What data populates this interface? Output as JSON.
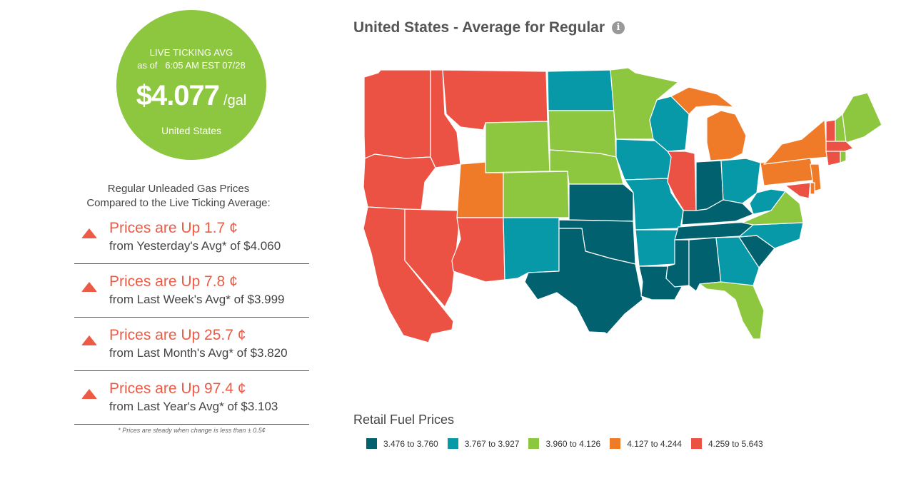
{
  "bubble": {
    "line1": "LIVE TICKING AVG",
    "line2": "as of   6:05 AM EST 07/28",
    "price": "$4.077",
    "unit": "/gal",
    "region": "United States"
  },
  "compare_heading": [
    "Regular Unleaded Gas Prices",
    "Compared to the Live Ticking Average:"
  ],
  "comparisons": [
    {
      "change": "Prices are Up 1.7 ¢",
      "from": "from Yesterday's Avg* of $4.060"
    },
    {
      "change": "Prices are Up 7.8 ¢",
      "from": "from Last Week's Avg* of $3.999"
    },
    {
      "change": "Prices are Up 25.7 ¢",
      "from": "from Last Month's Avg* of $3.820"
    },
    {
      "change": "Prices are Up 97.4 ¢",
      "from": "from Last Year's Avg* of $3.103"
    }
  ],
  "footnote": "* Prices are steady when change is less than ± 0.5¢",
  "map": {
    "title": "United States - Average for Regular",
    "info_icon": "info-icon",
    "legend_title": "Retail Fuel Prices",
    "legend": [
      {
        "label": "3.476 to 3.760",
        "color": "#02616f"
      },
      {
        "label": "3.767 to 3.927",
        "color": "#0899a8"
      },
      {
        "label": "3.960 to 4.126",
        "color": "#8dc63f"
      },
      {
        "label": "4.127 to 4.244",
        "color": "#ef7b29"
      },
      {
        "label": "4.259 to 5.643",
        "color": "#ec5243"
      }
    ]
  }
}
